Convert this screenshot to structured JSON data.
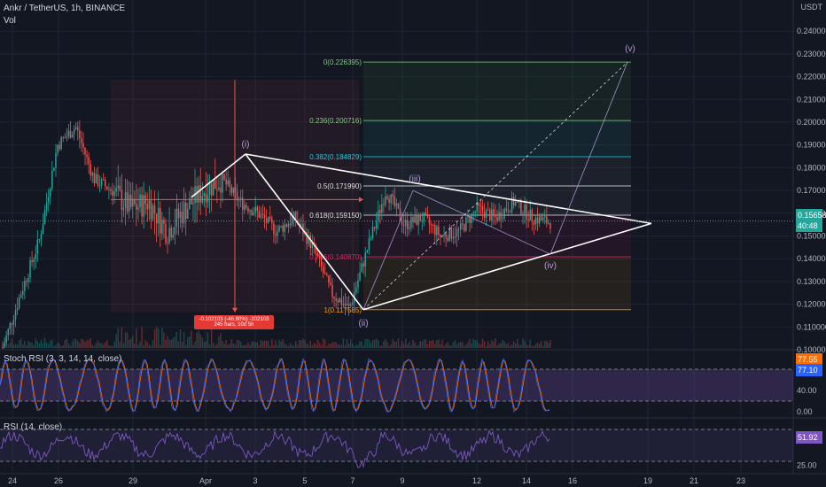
{
  "header": {
    "symbol_line": "Ankr / TetherUS, 1h, BINANCE",
    "volume_label": "Vol",
    "stoch_label": "Stoch RSI (3, 3, 14, 14, close)",
    "rsi_label": "RSI (14, close)"
  },
  "price_axis": {
    "currency": "USDT",
    "ticks": [
      "0.240000",
      "0.230000",
      "0.220000",
      "0.210000",
      "0.200000",
      "0.190000",
      "0.180000",
      "0.170000",
      "0.160000",
      "0.150000",
      "0.140000",
      "0.130000",
      "0.120000",
      "0.110000",
      "0.100000"
    ],
    "current_price": "0.156580",
    "countdown": "40:48"
  },
  "stoch_axis": {
    "ticks": [
      "40.00",
      "0.00"
    ],
    "k_value": "77.55",
    "d_value": "77.10"
  },
  "rsi_axis": {
    "ticks": [
      "25.00"
    ],
    "value": "51.92"
  },
  "time_axis": [
    "24",
    "26",
    "29",
    "Apr",
    "3",
    "5",
    "7",
    "9",
    "12",
    "14",
    "16",
    "19",
    "21",
    "23"
  ],
  "fibonacci": [
    {
      "label": "0(0.226395)",
      "color": "#81c784"
    },
    {
      "label": "0.236(0.200716)",
      "color": "#81c784"
    },
    {
      "label": "0.382(0.184829)",
      "color": "#26c6da"
    },
    {
      "label": "0.5(0.171990)",
      "color": "#e0e0e0"
    },
    {
      "label": "0.618(0.159150)",
      "color": "#e0e0e0"
    },
    {
      "label": "0.786(0.140870)",
      "color": "#e91e63"
    },
    {
      "label": "1(0.117585)",
      "color": "#ff9800"
    }
  ],
  "wave_labels": [
    "(i)",
    "(ii)",
    "(iii)",
    "(iv)",
    "(v)"
  ],
  "measure": {
    "line1": "-0.102103 (-46.90%) -102103",
    "line2": "245 bars, 10d 5h"
  },
  "colors": {
    "background": "#131722",
    "up": "#26a69a",
    "down": "#ef5350",
    "stoch_k": "#2962ff",
    "stoch_d": "#ff6d00",
    "rsi": "#7e57c2",
    "pattern": "#ffffff"
  },
  "chart_data": {
    "type": "candlestick",
    "title": "Ankr / TetherUS, 1h, BINANCE",
    "ylabel": "USDT",
    "ylim": [
      0.1,
      0.24
    ],
    "x": [
      "24",
      "26",
      "29",
      "Apr",
      "3",
      "5",
      "7",
      "9",
      "12",
      "14",
      "16",
      "19",
      "21",
      "23"
    ],
    "close_path": [
      0.101,
      0.125,
      0.148,
      0.19,
      0.198,
      0.175,
      0.17,
      0.162,
      0.165,
      0.152,
      0.162,
      0.17,
      0.175,
      0.165,
      0.16,
      0.152,
      0.158,
      0.145,
      0.125,
      0.118,
      0.145,
      0.17,
      0.155,
      0.158,
      0.15,
      0.152,
      0.162,
      0.158,
      0.165,
      0.158,
      0.156
    ],
    "pattern_points": [
      {
        "label": "(i)",
        "x": "Apr 2",
        "y": 0.186
      },
      {
        "label": "(ii)",
        "x": "Apr 7",
        "y": 0.1176
      },
      {
        "label": "(iii)",
        "x": "Apr 9",
        "y": 0.17
      },
      {
        "label": "(iv)",
        "x": "Apr 14",
        "y": 0.142
      },
      {
        "label": "(v)",
        "x": "Apr 18",
        "y": 0.2264
      }
    ],
    "fib_levels": [
      0.226395,
      0.200716,
      0.184829,
      0.17199,
      0.15915,
      0.14087,
      0.117585
    ],
    "stoch_rsi": {
      "k": 77.55,
      "d": 77.1,
      "levels": [
        80,
        20
      ]
    },
    "rsi": {
      "value": 51.92,
      "levels": [
        70,
        30
      ]
    }
  }
}
